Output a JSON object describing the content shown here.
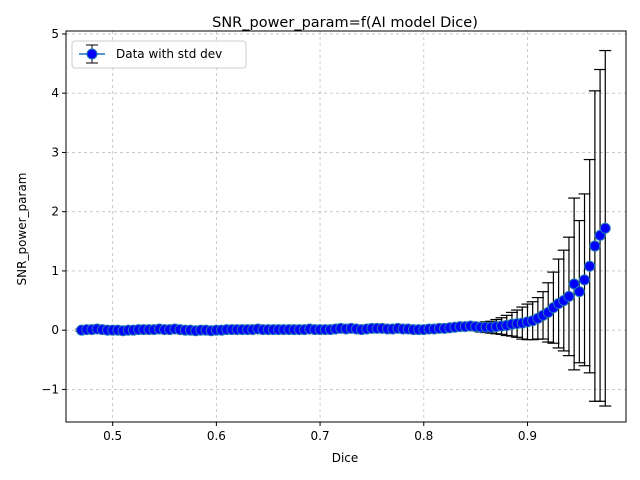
{
  "chart_data": {
    "type": "scatter",
    "title": "SNR_power_param=f(AI model Dice)",
    "xlabel": "Dice",
    "ylabel": "SNR_power_param",
    "xlim": [
      0.455,
      0.995
    ],
    "ylim": [
      -1.55,
      5.05
    ],
    "xticks": [
      0.5,
      0.6,
      0.7,
      0.8,
      0.9
    ],
    "xtick_labels": [
      "0.5",
      "0.6",
      "0.7",
      "0.8",
      "0.9"
    ],
    "yticks": [
      -1,
      0,
      1,
      2,
      3,
      4,
      5
    ],
    "ytick_labels": [
      "−1",
      "0",
      "1",
      "2",
      "3",
      "4",
      "5"
    ],
    "grid": true,
    "legend_position": "top-left",
    "marker_color": "#0000ff",
    "line_color": "#1f77b4",
    "errorbar_color": "#000000",
    "series": [
      {
        "name": "Data with std dev",
        "x": [
          0.47,
          0.475,
          0.48,
          0.485,
          0.49,
          0.495,
          0.5,
          0.505,
          0.51,
          0.515,
          0.52,
          0.525,
          0.53,
          0.535,
          0.54,
          0.545,
          0.55,
          0.555,
          0.56,
          0.565,
          0.57,
          0.575,
          0.58,
          0.585,
          0.59,
          0.595,
          0.6,
          0.605,
          0.61,
          0.615,
          0.62,
          0.625,
          0.63,
          0.635,
          0.64,
          0.645,
          0.65,
          0.655,
          0.66,
          0.665,
          0.67,
          0.675,
          0.68,
          0.685,
          0.69,
          0.695,
          0.7,
          0.705,
          0.71,
          0.715,
          0.72,
          0.725,
          0.73,
          0.735,
          0.74,
          0.745,
          0.75,
          0.755,
          0.76,
          0.765,
          0.77,
          0.775,
          0.78,
          0.785,
          0.79,
          0.795,
          0.8,
          0.805,
          0.81,
          0.815,
          0.82,
          0.825,
          0.83,
          0.835,
          0.84,
          0.845,
          0.85,
          0.855,
          0.86,
          0.865,
          0.87,
          0.875,
          0.88,
          0.885,
          0.89,
          0.895,
          0.9,
          0.905,
          0.91,
          0.915,
          0.92,
          0.925,
          0.93,
          0.935,
          0.94,
          0.945,
          0.95,
          0.955,
          0.96,
          0.965,
          0.97,
          0.975
        ],
        "y": [
          0.0,
          0.01,
          0.01,
          0.02,
          0.01,
          0.0,
          0.0,
          0.0,
          -0.01,
          0.0,
          0.0,
          0.01,
          0.01,
          0.01,
          0.01,
          0.02,
          0.01,
          0.01,
          0.02,
          0.01,
          0.0,
          0.0,
          -0.01,
          0.0,
          0.0,
          -0.01,
          0.0,
          0.0,
          0.01,
          0.01,
          0.01,
          0.01,
          0.01,
          0.01,
          0.02,
          0.01,
          0.01,
          0.01,
          0.01,
          0.01,
          0.01,
          0.01,
          0.01,
          0.01,
          0.02,
          0.01,
          0.01,
          0.01,
          0.01,
          0.02,
          0.03,
          0.02,
          0.03,
          0.02,
          0.01,
          0.02,
          0.03,
          0.03,
          0.03,
          0.02,
          0.02,
          0.03,
          0.02,
          0.02,
          0.01,
          0.01,
          0.01,
          0.02,
          0.02,
          0.03,
          0.03,
          0.04,
          0.05,
          0.06,
          0.06,
          0.07,
          0.06,
          0.05,
          0.05,
          0.05,
          0.06,
          0.07,
          0.08,
          0.1,
          0.11,
          0.12,
          0.14,
          0.16,
          0.2,
          0.25,
          0.3,
          0.38,
          0.45,
          0.5,
          0.57,
          0.78,
          0.65,
          0.85,
          1.08,
          1.42,
          1.6,
          1.72
        ],
        "std": [
          0.02,
          0.02,
          0.02,
          0.02,
          0.02,
          0.02,
          0.02,
          0.02,
          0.02,
          0.02,
          0.02,
          0.02,
          0.02,
          0.02,
          0.02,
          0.02,
          0.02,
          0.02,
          0.02,
          0.02,
          0.02,
          0.02,
          0.02,
          0.02,
          0.02,
          0.02,
          0.02,
          0.02,
          0.02,
          0.02,
          0.02,
          0.02,
          0.02,
          0.02,
          0.02,
          0.02,
          0.02,
          0.02,
          0.02,
          0.02,
          0.02,
          0.02,
          0.02,
          0.02,
          0.02,
          0.02,
          0.02,
          0.02,
          0.02,
          0.02,
          0.03,
          0.03,
          0.03,
          0.03,
          0.03,
          0.03,
          0.03,
          0.03,
          0.03,
          0.03,
          0.03,
          0.03,
          0.03,
          0.03,
          0.03,
          0.03,
          0.03,
          0.03,
          0.03,
          0.04,
          0.04,
          0.04,
          0.05,
          0.05,
          0.05,
          0.06,
          0.07,
          0.08,
          0.09,
          0.1,
          0.12,
          0.14,
          0.17,
          0.2,
          0.23,
          0.27,
          0.3,
          0.32,
          0.35,
          0.4,
          0.5,
          0.6,
          0.75,
          0.85,
          1.0,
          1.45,
          1.2,
          1.45,
          1.8,
          2.62,
          2.8,
          3.0
        ]
      }
    ]
  }
}
